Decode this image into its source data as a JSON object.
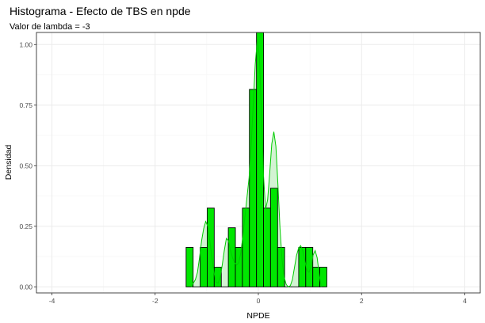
{
  "chart_data": {
    "type": "bar",
    "title": "Histograma - Efecto de TBS en npde",
    "subtitle": "Valor de lambda = -3",
    "xlabel": "NPDE",
    "ylabel": "Densidad",
    "xlim": [
      -4.3,
      4.3
    ],
    "ylim": [
      -0.025,
      1.05
    ],
    "x_ticks": [
      -4,
      -2,
      0,
      2,
      4
    ],
    "x_tick_labels": [
      "-4",
      "-2",
      "0",
      "2",
      "4"
    ],
    "y_ticks": [
      0,
      0.25,
      0.5,
      0.75,
      1
    ],
    "y_tick_labels": [
      "0.00",
      "0.25",
      "0.50",
      "0.75",
      "1.00"
    ],
    "grid": true,
    "bin_width": 0.1364,
    "bins": [
      {
        "x0": -1.4,
        "x1": -1.264,
        "density": 0.163
      },
      {
        "x0": -1.264,
        "x1": -1.127,
        "density": 0.0
      },
      {
        "x0": -1.127,
        "x1": -0.991,
        "density": 0.163
      },
      {
        "x0": -0.991,
        "x1": -0.855,
        "density": 0.325
      },
      {
        "x0": -0.855,
        "x1": -0.718,
        "density": 0.081
      },
      {
        "x0": -0.718,
        "x1": -0.582,
        "density": 0.0
      },
      {
        "x0": -0.582,
        "x1": -0.445,
        "density": 0.244
      },
      {
        "x0": -0.445,
        "x1": -0.309,
        "density": 0.163
      },
      {
        "x0": -0.309,
        "x1": -0.173,
        "density": 0.325
      },
      {
        "x0": -0.173,
        "x1": -0.036,
        "density": 0.815
      },
      {
        "x0": -0.036,
        "x1": 0.1,
        "density": 1.05
      },
      {
        "x0": 0.1,
        "x1": 0.236,
        "density": 0.325
      },
      {
        "x0": 0.236,
        "x1": 0.373,
        "density": 0.407
      },
      {
        "x0": 0.373,
        "x1": 0.509,
        "density": 0.163
      },
      {
        "x0": 0.509,
        "x1": 0.645,
        "density": 0.0
      },
      {
        "x0": 0.645,
        "x1": 0.782,
        "density": 0.0
      },
      {
        "x0": 0.782,
        "x1": 0.918,
        "density": 0.163
      },
      {
        "x0": 0.918,
        "x1": 1.055,
        "density": 0.163
      },
      {
        "x0": 1.055,
        "x1": 1.191,
        "density": 0.081
      },
      {
        "x0": 1.191,
        "x1": 1.327,
        "density": 0.081
      }
    ],
    "density_curve": {
      "x": [
        -1.3,
        -1.26,
        -1.22,
        -1.18,
        -1.14,
        -1.1,
        -1.06,
        -1.02,
        -0.98,
        -0.94,
        -0.9,
        -0.86,
        -0.82,
        -0.78,
        -0.74,
        -0.7,
        -0.66,
        -0.62,
        -0.58,
        -0.54,
        -0.5,
        -0.46,
        -0.42,
        -0.38,
        -0.34,
        -0.3,
        -0.26,
        -0.22,
        -0.18,
        -0.14,
        -0.1,
        -0.06,
        -0.02,
        0.02,
        0.06,
        0.1,
        0.14,
        0.18,
        0.22,
        0.26,
        0.3,
        0.34,
        0.38,
        0.42,
        0.46,
        0.5,
        0.54,
        0.58,
        0.62,
        0.66,
        0.7,
        0.74,
        0.78,
        0.82,
        0.86,
        0.9,
        0.94,
        0.98,
        1.02,
        1.06,
        1.1,
        1.14,
        1.18,
        1.22
      ],
      "y": [
        0.0,
        0.015,
        0.03,
        0.06,
        0.12,
        0.19,
        0.24,
        0.27,
        0.25,
        0.19,
        0.12,
        0.06,
        0.02,
        0.015,
        0.04,
        0.09,
        0.15,
        0.2,
        0.19,
        0.15,
        0.12,
        0.1,
        0.09,
        0.1,
        0.14,
        0.21,
        0.29,
        0.37,
        0.45,
        0.58,
        0.75,
        0.92,
        1.02,
        0.95,
        0.72,
        0.46,
        0.32,
        0.36,
        0.47,
        0.59,
        0.64,
        0.58,
        0.42,
        0.24,
        0.11,
        0.04,
        0.01,
        0.0,
        0.005,
        0.03,
        0.08,
        0.13,
        0.16,
        0.17,
        0.15,
        0.11,
        0.07,
        0.06,
        0.08,
        0.13,
        0.15,
        0.12,
        0.05,
        0.0
      ]
    },
    "colors": {
      "bar_fill": "#00e600",
      "bar_stroke": "#000000",
      "curve": "#00cc00",
      "curve_fill": "#c8f0c8",
      "panel_background": "#ffffff",
      "grid_major": "#ebebeb",
      "grid_minor": "#f5f5f5",
      "panel_border": "#333333"
    }
  }
}
